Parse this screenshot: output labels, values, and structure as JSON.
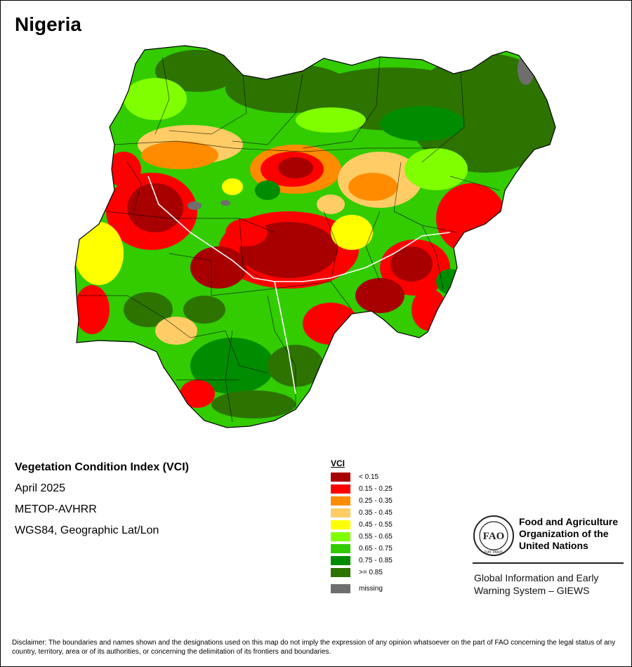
{
  "map": {
    "title": "Nigeria",
    "description": {
      "heading": "Vegetation Condition Index (VCI)",
      "date": "April 2025",
      "sensor": "METOP-AVHRR",
      "projection": "WGS84, Geographic Lat/Lon"
    }
  },
  "legend": {
    "title": "VCI",
    "classes": [
      {
        "label": "< 0.15",
        "color": "#a80000"
      },
      {
        "label": "0.15 - 0.25",
        "color": "#ff0000"
      },
      {
        "label": "0.25 - 0.35",
        "color": "#ff8c00"
      },
      {
        "label": "0.35 - 0.45",
        "color": "#ffcc66"
      },
      {
        "label": "0.45 - 0.55",
        "color": "#ffff00"
      },
      {
        "label": "0.55 - 0.65",
        "color": "#80ff00"
      },
      {
        "label": "0.65 - 0.75",
        "color": "#33cc00"
      },
      {
        "label": "0.75 - 0.85",
        "color": "#008c00"
      },
      {
        "label": ">= 0.85",
        "color": "#2d7300"
      }
    ],
    "missing": {
      "label": "missing",
      "color": "#6e6e6e"
    }
  },
  "organization": {
    "name_lines": [
      "Food and Agriculture",
      "Organization of the",
      "United Nations"
    ],
    "logo_letters": "FAO",
    "logo_motto": "FIAT PANIS",
    "system_lines": [
      "Global Information and Early",
      "Warning System – GIEWS"
    ]
  },
  "disclaimer": "Disclaimer: The boundaries and names shown and the designations used on this map do not imply the expression of any opinion whatsoever on the part of FAO concerning the legal status of any country, territory, area or of its authorities, or concerning the delimitation of its frontiers and boundaries."
}
